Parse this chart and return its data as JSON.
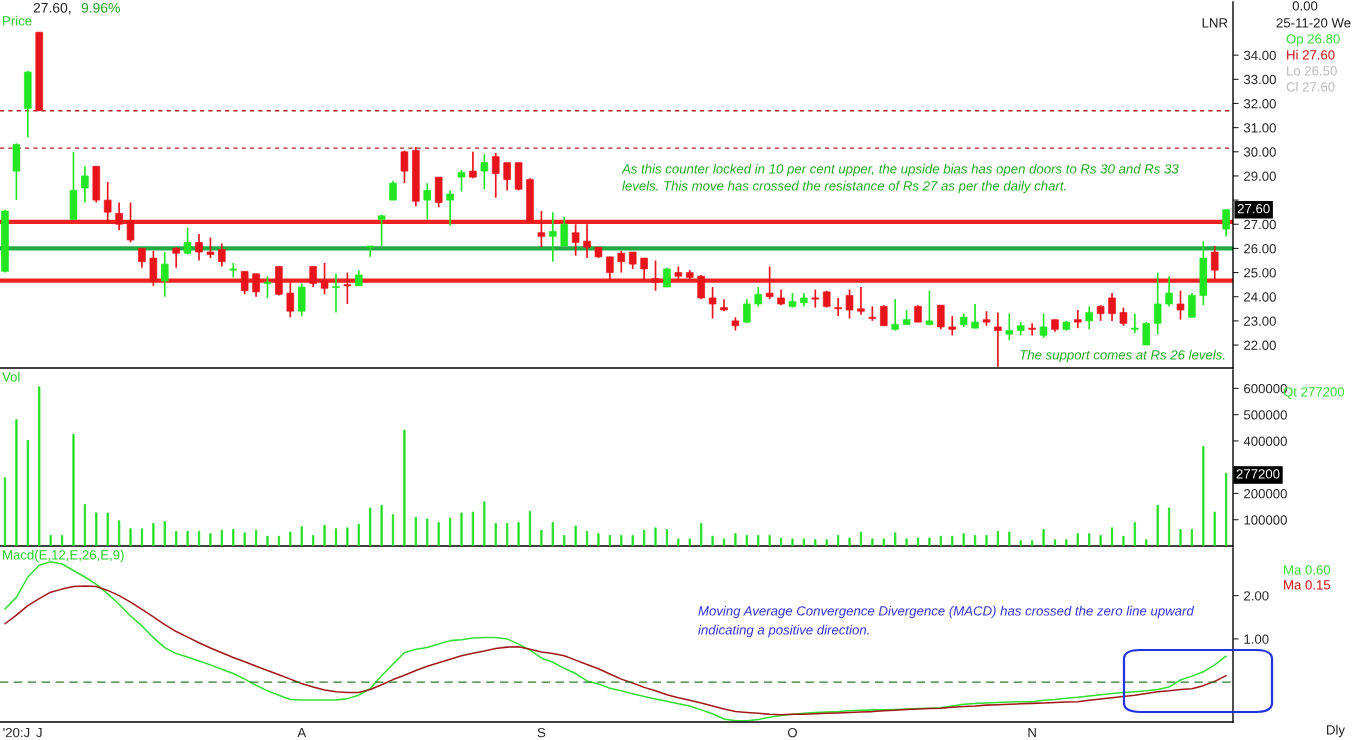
{
  "chart_data": [
    {
      "type": "candlestick",
      "title": "Price",
      "categories": [
        null,
        null,
        null,
        null,
        null,
        null,
        null,
        null,
        null,
        null,
        null,
        null,
        null,
        null,
        null,
        null,
        null,
        null,
        null,
        null,
        null,
        null,
        null,
        null,
        null,
        null,
        null,
        null,
        null,
        null,
        null,
        null,
        null,
        null,
        null,
        null,
        null,
        null,
        null,
        null,
        null,
        null,
        null,
        null,
        null,
        null,
        null,
        null,
        null,
        null,
        null,
        null,
        null,
        null,
        null,
        null,
        null,
        null,
        null,
        null,
        null,
        null,
        null,
        null,
        null,
        null,
        null,
        null,
        null,
        null,
        null,
        null,
        null,
        null,
        null,
        null,
        null,
        null,
        null,
        null,
        null,
        null,
        null,
        null,
        null,
        null,
        null,
        null,
        null,
        null,
        null,
        null,
        null,
        null,
        null,
        null,
        null,
        null,
        null,
        null,
        null,
        null,
        null,
        null,
        null,
        null,
        null,
        null
      ],
      "ohlc": [
        [
          25.05,
          27.6,
          25.0,
          27.55
        ],
        [
          29.2,
          30.35,
          28.0,
          30.3
        ],
        [
          31.8,
          33.35,
          30.6,
          33.3
        ],
        [
          34.95,
          34.95,
          31.7,
          31.7
        ],
        null,
        null,
        [
          27.2,
          30.0,
          27.2,
          28.4
        ],
        [
          28.5,
          29.4,
          27.9,
          29.0
        ],
        [
          29.4,
          29.4,
          27.9,
          28.0
        ],
        [
          28.0,
          28.75,
          27.05,
          27.5
        ],
        [
          27.45,
          27.9,
          26.75,
          27.0
        ],
        [
          27.15,
          27.9,
          26.25,
          26.35
        ],
        [
          26.0,
          26.0,
          25.2,
          25.45
        ],
        [
          25.6,
          25.9,
          24.45,
          24.65
        ],
        [
          24.65,
          25.85,
          24.0,
          25.35
        ],
        [
          26.0,
          26.05,
          25.2,
          25.8
        ],
        [
          25.8,
          26.85,
          25.75,
          26.25
        ],
        [
          26.25,
          26.6,
          25.5,
          25.85
        ],
        [
          25.85,
          26.45,
          25.6,
          25.75
        ],
        [
          25.95,
          26.2,
          25.25,
          25.45
        ],
        [
          25.1,
          25.4,
          24.8,
          25.15
        ],
        [
          25.05,
          25.05,
          24.1,
          24.25
        ],
        [
          24.95,
          24.95,
          24.0,
          24.2
        ],
        [
          24.55,
          24.85,
          23.95,
          24.6
        ],
        [
          25.25,
          25.25,
          24.05,
          24.1
        ],
        [
          24.15,
          24.6,
          23.15,
          23.4
        ],
        [
          23.4,
          24.55,
          23.2,
          24.4
        ],
        [
          25.25,
          25.25,
          24.4,
          24.55
        ],
        [
          24.65,
          25.4,
          24.1,
          24.35
        ],
        [
          24.38,
          24.95,
          23.35,
          24.42
        ],
        [
          24.5,
          25.0,
          23.7,
          24.45
        ],
        [
          24.45,
          25.1,
          24.45,
          24.9
        ],
        [
          26.05,
          26.1,
          25.65,
          26.1
        ],
        [
          27.2,
          27.4,
          26.1,
          27.35
        ],
        [
          28.0,
          28.8,
          28.0,
          28.7
        ],
        [
          30.0,
          30.05,
          28.7,
          29.2
        ],
        [
          30.05,
          30.2,
          27.75,
          27.95
        ],
        [
          28.0,
          28.7,
          27.2,
          28.4
        ],
        [
          28.95,
          28.95,
          27.7,
          27.9
        ],
        [
          28.0,
          28.4,
          26.95,
          28.25
        ],
        [
          28.95,
          29.25,
          28.35,
          29.15
        ],
        [
          29.2,
          30.0,
          28.9,
          28.95
        ],
        [
          29.2,
          29.9,
          28.45,
          29.55
        ],
        [
          29.8,
          29.95,
          28.1,
          29.1
        ],
        [
          29.55,
          29.55,
          28.4,
          28.85
        ],
        [
          29.55,
          29.55,
          28.4,
          28.45
        ],
        [
          28.85,
          28.9,
          27.1,
          27.1
        ],
        [
          26.65,
          27.55,
          26.05,
          26.5
        ],
        [
          26.5,
          27.5,
          25.45,
          26.7
        ],
        [
          26.1,
          27.3,
          26.1,
          27.0
        ],
        [
          26.65,
          27.0,
          25.7,
          26.25
        ],
        [
          26.3,
          27.0,
          25.6,
          26.05
        ],
        [
          26.05,
          26.05,
          25.6,
          25.65
        ],
        [
          25.65,
          25.65,
          24.7,
          25.0
        ],
        [
          25.8,
          25.9,
          25.0,
          25.45
        ],
        [
          25.85,
          25.85,
          25.15,
          25.35
        ],
        [
          25.6,
          25.6,
          24.7,
          25.15
        ],
        [
          24.75,
          25.5,
          24.25,
          24.6
        ],
        [
          24.4,
          25.2,
          24.4,
          25.15
        ],
        [
          25.0,
          25.25,
          24.7,
          24.85
        ],
        [
          25.0,
          25.1,
          24.7,
          24.8
        ],
        [
          24.85,
          24.9,
          23.9,
          23.95
        ],
        [
          23.95,
          24.4,
          23.1,
          23.7
        ],
        [
          23.55,
          23.9,
          23.4,
          23.45
        ],
        [
          23.0,
          23.15,
          22.6,
          22.8
        ],
        [
          22.95,
          23.9,
          22.9,
          23.7
        ],
        [
          23.7,
          24.4,
          23.6,
          24.1
        ],
        [
          24.15,
          25.25,
          23.9,
          24.0
        ],
        [
          23.95,
          24.3,
          23.65,
          23.7
        ],
        [
          23.6,
          24.15,
          23.55,
          23.8
        ],
        [
          23.75,
          24.15,
          23.6,
          23.95
        ],
        [
          23.95,
          24.3,
          23.55,
          23.9
        ],
        [
          24.2,
          24.25,
          23.55,
          23.6
        ],
        [
          23.55,
          23.95,
          23.2,
          23.5
        ],
        [
          24.05,
          24.3,
          23.1,
          23.45
        ],
        [
          23.5,
          24.4,
          23.25,
          23.4
        ],
        [
          23.15,
          23.6,
          23.0,
          23.1
        ],
        [
          23.6,
          23.65,
          22.8,
          22.8
        ],
        [
          22.65,
          23.9,
          22.6,
          22.85
        ],
        [
          22.85,
          23.45,
          22.85,
          23.05
        ],
        [
          23.6,
          23.65,
          22.95,
          22.95
        ],
        [
          22.85,
          24.25,
          22.85,
          23.0
        ],
        [
          23.65,
          23.65,
          22.65,
          22.75
        ],
        [
          22.75,
          23.2,
          22.4,
          22.65
        ],
        [
          22.85,
          23.3,
          22.75,
          23.15
        ],
        [
          22.7,
          23.7,
          22.7,
          22.95
        ],
        [
          23.05,
          23.4,
          22.8,
          22.95
        ],
        [
          22.75,
          23.35,
          21.1,
          22.6
        ],
        [
          22.45,
          23.3,
          22.2,
          22.6
        ],
        [
          22.6,
          22.95,
          22.4,
          22.8
        ],
        [
          22.7,
          22.9,
          22.4,
          22.65
        ],
        [
          22.4,
          23.3,
          22.3,
          22.75
        ],
        [
          23.05,
          23.05,
          22.55,
          22.65
        ],
        [
          22.65,
          23.0,
          22.6,
          22.95
        ],
        [
          23.05,
          23.45,
          22.7,
          22.95
        ],
        [
          23.0,
          23.6,
          22.65,
          23.35
        ],
        [
          23.6,
          23.65,
          23.0,
          23.3
        ],
        [
          23.95,
          24.15,
          23.0,
          23.3
        ],
        [
          23.35,
          23.55,
          22.8,
          22.9
        ],
        [
          22.65,
          23.3,
          22.5,
          22.7
        ],
        [
          22.0,
          22.95,
          22.0,
          22.9
        ],
        [
          22.9,
          25.0,
          22.45,
          23.7
        ],
        [
          23.7,
          24.85,
          23.6,
          24.15
        ],
        [
          23.7,
          24.25,
          23.05,
          23.45
        ],
        [
          23.15,
          24.15,
          23.15,
          24.05
        ],
        [
          24.05,
          26.3,
          23.65,
          25.6
        ],
        [
          25.85,
          26.1,
          24.7,
          25.1
        ],
        [
          26.8,
          27.6,
          26.5,
          27.6
        ]
      ],
      "colors": [
        "#22e622",
        "#22e622",
        "#22e622",
        "#e8141b",
        null,
        null,
        "#22e622",
        "#22e622",
        "#e8141b",
        "#e8141b",
        "#e8141b",
        "#e8141b",
        "#e8141b",
        "#e8141b",
        "#22e622",
        "#e8141b",
        "#22e622",
        "#e8141b",
        "#e8141b",
        "#e8141b",
        "#22e622",
        "#e8141b",
        "#e8141b",
        "#22e622",
        "#e8141b",
        "#e8141b",
        "#22e622",
        "#e8141b",
        "#e8141b",
        "#22e622",
        "#e8141b",
        "#22e622",
        "#22e622",
        "#22e622",
        "#22e622",
        "#e8141b",
        "#e8141b",
        "#22e622",
        "#e8141b",
        "#22e622",
        "#22e622",
        "#e8141b",
        "#22e622",
        "#e8141b",
        "#e8141b",
        "#e8141b",
        "#e8141b",
        "#e8141b",
        "#22e622",
        "#22e622",
        "#e8141b",
        "#e8141b",
        "#e8141b",
        "#e8141b",
        "#e8141b",
        "#e8141b",
        "#e8141b",
        "#e8141b",
        "#22e622",
        "#e8141b",
        "#e8141b",
        "#e8141b",
        "#e8141b",
        "#e8141b",
        "#e8141b",
        "#22e622",
        "#22e622",
        "#e8141b",
        "#e8141b",
        "#22e622",
        "#22e622",
        "#e8141b",
        "#e8141b",
        "#e8141b",
        "#e8141b",
        "#e8141b",
        "#e8141b",
        "#e8141b",
        "#22e622",
        "#22e622",
        "#e8141b",
        "#22e622",
        "#e8141b",
        "#e8141b",
        "#22e622",
        "#22e622",
        "#e8141b",
        "#e8141b",
        "#22e622",
        "#22e622",
        "#e8141b",
        "#22e622",
        "#e8141b",
        "#22e622",
        "#e8141b",
        "#22e622",
        "#e8141b",
        "#e8141b",
        "#e8141b",
        "#22e622",
        "#22e622",
        "#22e622",
        "#22e622",
        "#e8141b",
        "#22e622",
        "#22e622",
        "#e8141b",
        "#22e622"
      ],
      "ylim": [
        21.05,
        36.2
      ],
      "yticks": [
        {
          "value": 22,
          "label": "22.00"
        },
        {
          "value": 23,
          "label": "23.00"
        },
        {
          "value": 24,
          "label": "24.00"
        },
        {
          "value": 25,
          "label": "25.00"
        },
        {
          "value": 26,
          "label": "26.00"
        },
        {
          "value": 27,
          "label": "27.00"
        },
        {
          "value": 28,
          "label": null
        },
        {
          "value": 29,
          "label": "29.00"
        },
        {
          "value": 30,
          "label": "30.00"
        },
        {
          "value": 31,
          "label": "31.00"
        },
        {
          "value": 32,
          "label": "32.00"
        },
        {
          "value": 33,
          "label": "33.00"
        },
        {
          "value": 34,
          "label": "34.00"
        }
      ],
      "ref_lines": [
        {
          "axis": "y",
          "value": 31.7,
          "color": "#b02020",
          "line_style": "dotted"
        },
        {
          "axis": "y",
          "value": 30.15,
          "color": "#b02020",
          "line_style": "dotted"
        },
        {
          "axis": "y",
          "value": 27.1,
          "color": "#ee2222",
          "line_style": "solid"
        },
        {
          "axis": "y",
          "value": 26.0,
          "color": "#22aa44",
          "line_style": "solid"
        },
        {
          "axis": "y",
          "value": 24.67,
          "color": "#ee2222",
          "line_style": "solid"
        }
      ],
      "annotations": [
        "27.60,",
        "9.96%",
        "0.00",
        "25-11-20 We",
        "Op 26.80",
        "Hi 27.60",
        "Lo 26.50",
        "Cl 27.60",
        "LNR",
        "As this counter locked in 10 per cent upper, the upside bias has open doors to Rs 30 and Rs 33",
        "levels. This move has crossed the resistance of Rs 27 as per the daily chart.",
        "The support comes at Rs 26 levels.",
        {
          "text": "27.60",
          "y": 27.6
        }
      ],
      "tick_labels": "y",
      "grid": false,
      "legend": false
    },
    {
      "type": "bar",
      "title": "Vol",
      "categories": [
        null,
        null,
        null,
        null,
        null,
        null,
        null,
        null,
        null,
        null,
        null,
        null,
        null,
        null,
        null,
        null,
        null,
        null,
        null,
        null,
        null,
        null,
        null,
        null,
        null,
        null,
        null,
        null,
        null,
        null,
        null,
        null,
        null,
        null,
        null,
        null,
        null,
        null,
        null,
        null,
        null,
        null,
        null,
        null,
        null,
        null,
        null,
        null,
        null,
        null,
        null,
        null,
        null,
        null,
        null,
        null,
        null,
        null,
        null,
        null,
        null,
        null,
        null,
        null,
        null,
        null,
        null,
        null,
        null,
        null,
        null,
        null,
        null,
        null,
        null,
        null,
        null,
        null,
        null,
        null,
        null,
        null,
        null,
        null,
        null,
        null,
        null,
        null,
        null,
        null,
        null,
        null,
        null,
        null,
        null,
        null,
        null,
        null,
        null,
        null,
        null,
        null,
        null,
        null,
        null,
        null,
        null,
        null
      ],
      "values": [
        260000,
        481000,
        402000,
        606000,
        40000,
        40000,
        425000,
        158000,
        126000,
        126000,
        96000,
        66000,
        66000,
        86000,
        93000,
        56000,
        56000,
        56000,
        47000,
        60000,
        63000,
        50000,
        60000,
        37000,
        37000,
        53000,
        73000,
        40000,
        79000,
        66000,
        69000,
        83000,
        145000,
        155000,
        119000,
        441000,
        109000,
        103000,
        89000,
        106000,
        126000,
        129000,
        168000,
        86000,
        86000,
        89000,
        132000,
        60000,
        89000,
        40000,
        76000,
        56000,
        47000,
        40000,
        40000,
        40000,
        60000,
        69000,
        63000,
        27000,
        27000,
        86000,
        37000,
        27000,
        47000,
        40000,
        40000,
        40000,
        30000,
        27000,
        27000,
        24000,
        24000,
        40000,
        30000,
        53000,
        27000,
        27000,
        50000,
        27000,
        30000,
        30000,
        37000,
        37000,
        47000,
        40000,
        40000,
        56000,
        53000,
        20000,
        20000,
        63000,
        24000,
        24000,
        47000,
        47000,
        40000,
        69000,
        37000,
        89000,
        24000,
        155000,
        145000,
        63000,
        63000,
        379000,
        129000,
        277200
      ],
      "color": "#22dd22",
      "ylim": [
        0,
        670000
      ],
      "yticks": [
        100000,
        200000,
        {
          "value": 300000,
          "label": null
        },
        400000,
        500000,
        600000
      ],
      "annotations": [
        "Qt 277200",
        "277200"
      ],
      "tick_labels": "y",
      "grid": false,
      "legend": false
    },
    {
      "type": "line",
      "title": "Macd(E,12,E,26,E,9)",
      "categories": [
        null,
        "'20:J",
        null,
        "J",
        null,
        null,
        null,
        null,
        null,
        null,
        null,
        null,
        null,
        null,
        null,
        null,
        null,
        null,
        null,
        null,
        null,
        null,
        null,
        null,
        null,
        null,
        "A",
        null,
        null,
        null,
        null,
        null,
        null,
        null,
        null,
        null,
        null,
        null,
        null,
        null,
        null,
        null,
        null,
        null,
        null,
        null,
        null,
        "S",
        null,
        null,
        null,
        null,
        null,
        null,
        null,
        null,
        null,
        null,
        null,
        null,
        null,
        null,
        null,
        null,
        null,
        null,
        null,
        null,
        null,
        "O",
        null,
        null,
        null,
        null,
        null,
        null,
        null,
        null,
        null,
        null,
        null,
        null,
        null,
        null,
        null,
        null,
        null,
        null,
        null,
        null,
        "N",
        null,
        null,
        null,
        null,
        null,
        null,
        null,
        null,
        null,
        null,
        null,
        null,
        null,
        null,
        null,
        null,
        null
      ],
      "series": [
        {
          "color": "#33dd33",
          "values": [
            1.69,
            1.96,
            2.43,
            2.7,
            2.78,
            2.73,
            2.58,
            2.43,
            2.26,
            2.04,
            1.8,
            1.53,
            1.3,
            1.03,
            0.8,
            0.66,
            0.58,
            0.49,
            0.4,
            0.3,
            0.2,
            0.07,
            -0.07,
            -0.2,
            -0.3,
            -0.4,
            -0.41,
            -0.41,
            -0.41,
            -0.41,
            -0.38,
            -0.3,
            -0.15,
            0.15,
            0.42,
            0.68,
            0.76,
            0.8,
            0.88,
            0.96,
            0.98,
            1.02,
            1.03,
            1.03,
            1.0,
            0.88,
            0.74,
            0.56,
            0.46,
            0.32,
            0.2,
            0.03,
            -0.04,
            -0.14,
            -0.2,
            -0.27,
            -0.33,
            -0.39,
            -0.44,
            -0.5,
            -0.55,
            -0.64,
            -0.73,
            -0.85,
            -0.89,
            -0.89,
            -0.86,
            -0.81,
            -0.77,
            -0.74,
            -0.72,
            -0.7,
            -0.69,
            -0.68,
            -0.66,
            -0.65,
            -0.64,
            -0.64,
            -0.63,
            -0.62,
            -0.61,
            -0.6,
            -0.59,
            -0.55,
            -0.51,
            -0.49,
            -0.48,
            -0.47,
            -0.46,
            -0.45,
            -0.45,
            -0.42,
            -0.4,
            -0.37,
            -0.35,
            -0.32,
            -0.29,
            -0.26,
            -0.24,
            -0.22,
            -0.2,
            -0.17,
            -0.11,
            0.05,
            0.14,
            0.24,
            0.4,
            0.6
          ]
        },
        {
          "color": "#a01818",
          "values": [
            1.35,
            1.55,
            1.77,
            1.93,
            2.08,
            2.15,
            2.21,
            2.22,
            2.21,
            2.12,
            2.0,
            1.85,
            1.68,
            1.51,
            1.33,
            1.17,
            1.04,
            0.91,
            0.79,
            0.68,
            0.57,
            0.47,
            0.37,
            0.27,
            0.17,
            0.07,
            -0.03,
            -0.11,
            -0.18,
            -0.22,
            -0.24,
            -0.24,
            -0.17,
            -0.06,
            0.06,
            0.16,
            0.27,
            0.37,
            0.45,
            0.53,
            0.61,
            0.67,
            0.72,
            0.78,
            0.81,
            0.82,
            0.76,
            0.7,
            0.66,
            0.61,
            0.51,
            0.41,
            0.31,
            0.19,
            0.07,
            -0.02,
            -0.12,
            -0.2,
            -0.29,
            -0.36,
            -0.42,
            -0.48,
            -0.55,
            -0.62,
            -0.68,
            -0.7,
            -0.72,
            -0.74,
            -0.75,
            -0.74,
            -0.74,
            -0.73,
            -0.72,
            -0.71,
            -0.7,
            -0.69,
            -0.68,
            -0.66,
            -0.65,
            -0.63,
            -0.62,
            -0.61,
            -0.6,
            -0.58,
            -0.56,
            -0.55,
            -0.53,
            -0.52,
            -0.51,
            -0.5,
            -0.49,
            -0.48,
            -0.47,
            -0.46,
            -0.45,
            -0.42,
            -0.39,
            -0.36,
            -0.33,
            -0.3,
            -0.26,
            -0.22,
            -0.2,
            -0.17,
            -0.15,
            -0.08,
            0.02,
            0.15
          ]
        }
      ],
      "ylim": [
        -0.92,
        3.1
      ],
      "yticks": [
        {
          "value": 1,
          "label": "1.00"
        },
        {
          "value": 2,
          "label": "2.00"
        }
      ],
      "ref_lines": [
        {
          "axis": "y",
          "value": 0,
          "color": "#2d7a2d",
          "line_style": "dashed"
        }
      ],
      "annotations": [
        "Ma 0.60",
        "Ma 0.15",
        "Dly",
        "Moving Average Convergence Divergence (MACD) has crossed the zero line upward",
        "indicating a positive direction."
      ],
      "grid": false,
      "legend": false
    }
  ]
}
